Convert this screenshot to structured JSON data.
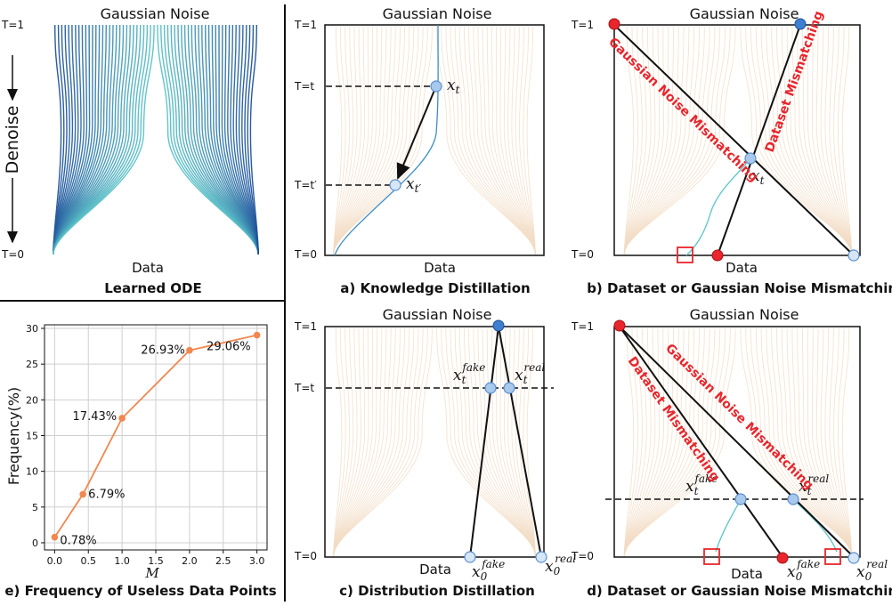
{
  "common": {
    "gaussian_noise": "Gaussian Noise",
    "data": "Data",
    "t1": "T=1",
    "t0": "T=0",
    "denoise": "Denoise"
  },
  "panels": {
    "ode": {
      "caption": "Learned ODE"
    },
    "a": {
      "caption": "a) Knowledge Distillation",
      "t_label": "T=t",
      "tp_label": "T=t′"
    },
    "b": {
      "caption": "b) Dataset or Gaussian Noise Mismatching",
      "red1": "Gaussian Noise Mismatching",
      "red2": "Dataset Mismatching"
    },
    "c": {
      "caption": "c) Distribution Distillation",
      "t_label": "T=t"
    },
    "d": {
      "caption": "d) Dataset or Gaussian Noise Mismatching",
      "red1": "Gaussian Noise Mismatching",
      "red2": "Dataset Mismatching"
    },
    "e": {
      "caption": "e) Frequency of Useless Data Points"
    }
  },
  "colors": {
    "blue_dark": "#1d4f9a",
    "blue_light": "#5cc4c8",
    "beige": "#f3dcc4",
    "node_fill": "#a8c8ec",
    "node_stroke": "#5a8fd0",
    "red": "#e8262c",
    "orange": "#f2874f"
  },
  "chart_data": {
    "type": "line",
    "xlabel": "M",
    "ylabel": "Frequency(%)",
    "x": [
      0.0,
      0.42,
      1.0,
      2.0,
      3.0
    ],
    "y": [
      0.78,
      6.79,
      17.43,
      26.93,
      29.06
    ],
    "point_labels": [
      "0.78%",
      "6.79%",
      "17.43%",
      "26.93%",
      "29.06%"
    ],
    "xlim": [
      -0.15,
      3.15
    ],
    "ylim": [
      -1,
      30.5
    ],
    "xticks": [
      0.0,
      0.5,
      1.0,
      1.5,
      2.0,
      2.5,
      3.0
    ],
    "xtick_labels": [
      "0.0",
      "0.5",
      "1.0",
      "1.5",
      "2.0",
      "2.5",
      "3.0"
    ],
    "yticks": [
      0,
      5,
      10,
      15,
      20,
      25,
      30
    ],
    "ytick_labels": [
      "0",
      "5",
      "10",
      "15",
      "20",
      "25",
      "30"
    ],
    "grid": true
  }
}
